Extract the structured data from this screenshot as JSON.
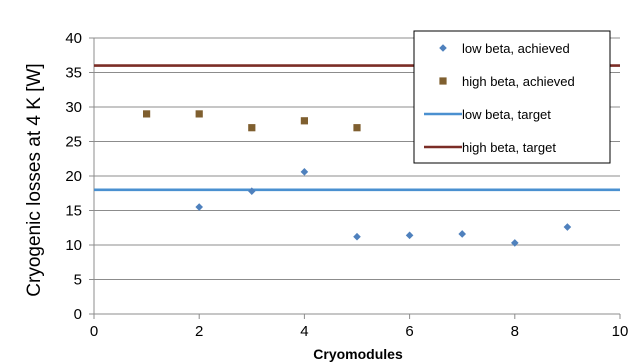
{
  "chart_data": {
    "type": "scatter",
    "title": "",
    "xlabel": "Cryomodules",
    "ylabel": "Cryogenic losses at 4 K [W]",
    "xlim": [
      0,
      10
    ],
    "ylim": [
      0,
      40
    ],
    "xticks": [
      0,
      2,
      4,
      6,
      8,
      10
    ],
    "yticks": [
      0,
      5,
      10,
      15,
      20,
      25,
      30,
      35,
      40
    ],
    "grid": "horizontal",
    "legend_position": "top-right",
    "series": [
      {
        "name": "low beta, achieved",
        "kind": "scatter",
        "marker": "diamond",
        "color": "#4F81BD",
        "x": [
          2,
          3,
          4,
          5,
          6,
          7,
          8,
          9
        ],
        "y": [
          15.5,
          17.8,
          20.6,
          11.2,
          11.4,
          11.6,
          10.3,
          12.6
        ]
      },
      {
        "name": "high beta, achieved",
        "kind": "scatter",
        "marker": "square",
        "color": "#7F5F2F",
        "x": [
          1,
          2,
          3,
          4,
          5
        ],
        "y": [
          29,
          29,
          27,
          28,
          27
        ]
      },
      {
        "name": "low beta, target",
        "kind": "line",
        "color": "#4A90D0",
        "y": 18
      },
      {
        "name": "high beta, target",
        "kind": "line",
        "color": "#7B2D26",
        "y": 36
      }
    ]
  }
}
